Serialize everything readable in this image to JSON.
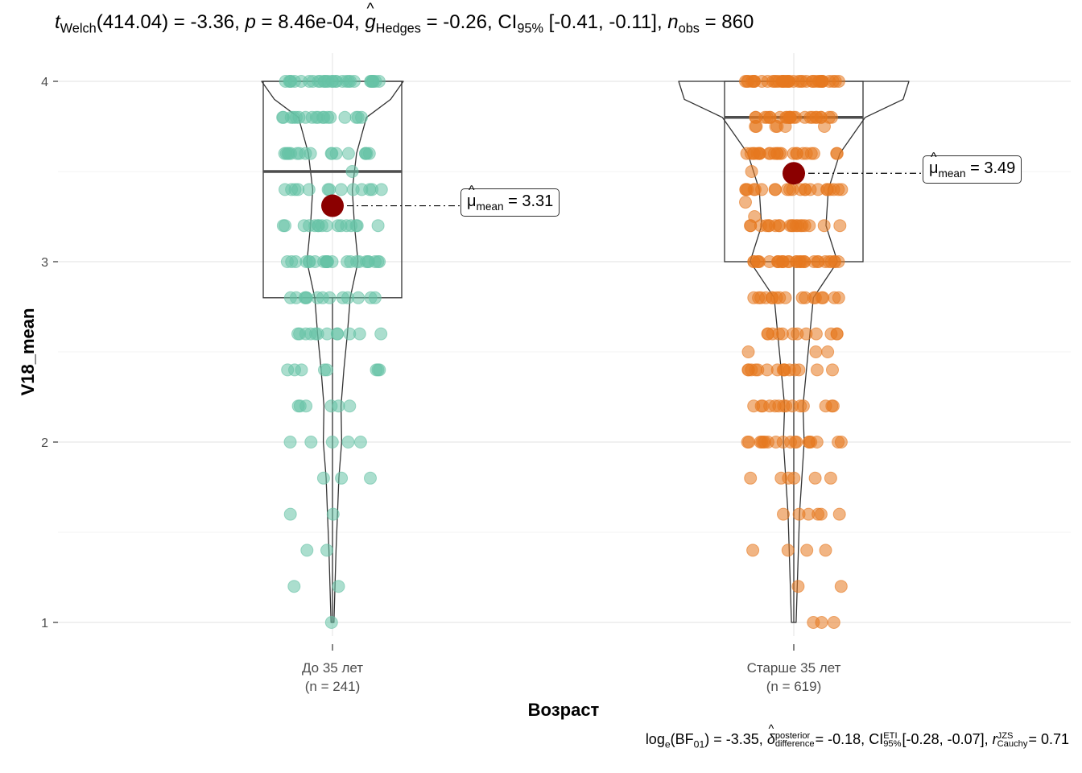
{
  "subtitle": {
    "t_sym": "t",
    "t_sub": "Welch",
    "t_df": "(414.04)",
    "t_val": "= -3.36,",
    "p_sym": "p",
    "p_val": "= 8.46e-04,",
    "g_sym": "g",
    "g_sub": "Hedges",
    "g_val": "= -0.26,",
    "ci_sym": "CI",
    "ci_sub": "95%",
    "ci_val": "[-0.41, -0.11],",
    "n_sym": "n",
    "n_sub": "obs",
    "n_val": "= 860"
  },
  "caption": {
    "log": "log",
    "log_sub": "e",
    "bf": "(BF",
    "bf_sub": "01",
    "bf_val": ") = -3.35,",
    "delta": "δ",
    "delta_sup": "posterior",
    "delta_sub": "difference",
    "delta_val": "= -0.18,",
    "ci": "CI",
    "ci_sup": "ETI",
    "ci_sub": "95%",
    "ci_val": "[-0.28, -0.07],",
    "r": "r",
    "r_sup": "JZS",
    "r_sub": "Cauchy",
    "r_val": "= 0.71"
  },
  "chart_data": {
    "type": "violin-box-scatter",
    "xlabel": "Возраст",
    "ylabel": "V18_mean",
    "ylim": [
      0.9,
      4.12
    ],
    "yticks": [
      1,
      2,
      3,
      4
    ],
    "grid": true,
    "categories": [
      "До 35 лет",
      "Старше 35 лет"
    ],
    "category_n": [
      "(n = 241)",
      "(n = 619)"
    ],
    "colors": [
      "#66c2a5",
      "#e6781f"
    ],
    "mean_color": "#8b0000",
    "box": [
      {
        "q1": 2.8,
        "median": 3.5,
        "q3": 4.0,
        "whisker_low": 1.0,
        "whisker_high": 4.0
      },
      {
        "q1": 3.0,
        "median": 3.8,
        "q3": 4.0,
        "whisker_low": 1.0,
        "whisker_high": 4.0
      }
    ],
    "means": [
      3.31,
      3.49
    ],
    "mean_label_symbol": "μ",
    "mean_label_sub": "mean",
    "mean_labels": [
      "= 3.31",
      "= 3.49"
    ],
    "violin": [
      {
        "y": [
          1.0,
          1.2,
          1.4,
          1.6,
          1.8,
          2.0,
          2.2,
          2.4,
          2.6,
          2.8,
          3.0,
          3.2,
          3.4,
          3.6,
          3.8,
          3.9,
          4.0
        ],
        "density": [
          0.02,
          0.035,
          0.05,
          0.07,
          0.09,
          0.13,
          0.12,
          0.16,
          0.21,
          0.25,
          0.36,
          0.31,
          0.28,
          0.34,
          0.48,
          0.82,
          1.0
        ]
      },
      {
        "y": [
          1.0,
          1.2,
          1.4,
          1.6,
          1.8,
          2.0,
          2.2,
          2.4,
          2.6,
          2.8,
          3.0,
          3.2,
          3.4,
          3.6,
          3.8,
          3.9,
          4.0
        ],
        "density": [
          0.02,
          0.03,
          0.04,
          0.05,
          0.07,
          0.09,
          0.08,
          0.11,
          0.14,
          0.17,
          0.38,
          0.28,
          0.3,
          0.4,
          0.62,
          0.95,
          1.0
        ]
      }
    ],
    "points": [
      {
        "values": [
          1.0,
          1.2,
          1.2,
          1.4,
          1.4,
          1.6,
          1.6,
          1.8,
          1.8,
          1.8,
          2.0,
          2.0,
          2.0,
          2.0,
          2.0,
          2.2,
          2.2,
          2.2,
          2.2,
          2.2,
          2.2,
          2.4,
          2.4,
          2.4,
          2.4,
          2.4,
          2.4,
          2.4,
          2.4,
          2.6,
          2.6,
          2.6,
          2.6,
          2.6,
          2.6,
          2.6,
          2.6,
          2.6,
          2.6,
          2.6,
          2.6,
          2.8,
          2.8,
          2.8,
          2.8,
          2.8,
          2.8,
          2.8,
          2.8,
          2.8,
          2.8,
          2.8,
          2.8,
          2.8,
          3.0,
          3.0,
          3.0,
          3.0,
          3.0,
          3.0,
          3.0,
          3.0,
          3.0,
          3.0,
          3.0,
          3.0,
          3.0,
          3.0,
          3.0,
          3.0,
          3.0,
          3.0,
          3.0,
          3.0,
          3.0,
          3.0,
          3.0,
          3.0,
          3.2,
          3.2,
          3.2,
          3.2,
          3.2,
          3.2,
          3.2,
          3.2,
          3.2,
          3.2,
          3.2,
          3.2,
          3.2,
          3.2,
          3.2,
          3.2,
          3.4,
          3.4,
          3.4,
          3.4,
          3.4,
          3.4,
          3.4,
          3.4,
          3.4,
          3.4,
          3.4,
          3.4,
          3.4,
          3.5,
          3.6,
          3.6,
          3.6,
          3.6,
          3.6,
          3.6,
          3.6,
          3.6,
          3.6,
          3.6,
          3.6,
          3.6,
          3.6,
          3.6,
          3.6,
          3.6,
          3.6,
          3.8,
          3.8,
          3.8,
          3.8,
          3.8,
          3.8,
          3.8,
          3.8,
          3.8,
          3.8,
          3.8,
          3.8,
          3.8,
          3.8,
          3.8,
          3.8,
          3.8,
          3.8,
          4.0,
          4.0,
          4.0,
          4.0,
          4.0,
          4.0,
          4.0,
          4.0,
          4.0,
          4.0,
          4.0,
          4.0,
          4.0,
          4.0,
          4.0,
          4.0,
          4.0,
          4.0,
          4.0,
          4.0,
          4.0,
          4.0,
          4.0,
          4.0,
          4.0,
          4.0,
          4.0,
          4.0,
          4.0,
          4.0
        ]
      },
      {
        "values": [
          1.0,
          1.0,
          1.0,
          1.2,
          1.2,
          1.4,
          1.4,
          1.4,
          1.4,
          1.6,
          1.6,
          1.6,
          1.6,
          1.6,
          1.6,
          1.8,
          1.8,
          1.8,
          1.8,
          1.8,
          1.8,
          2.0,
          2.0,
          2.0,
          2.0,
          2.0,
          2.0,
          2.0,
          2.0,
          2.0,
          2.0,
          2.0,
          2.0,
          2.0,
          2.0,
          2.0,
          2.0,
          2.0,
          2.0,
          2.2,
          2.2,
          2.2,
          2.2,
          2.2,
          2.2,
          2.2,
          2.2,
          2.2,
          2.2,
          2.2,
          2.2,
          2.2,
          2.2,
          2.4,
          2.4,
          2.4,
          2.4,
          2.4,
          2.4,
          2.4,
          2.4,
          2.4,
          2.4,
          2.4,
          2.4,
          2.4,
          2.4,
          2.4,
          2.5,
          2.5,
          2.5,
          2.6,
          2.6,
          2.6,
          2.6,
          2.6,
          2.6,
          2.6,
          2.6,
          2.6,
          2.6,
          2.6,
          2.6,
          2.8,
          2.8,
          2.8,
          2.8,
          2.8,
          2.8,
          2.8,
          2.8,
          2.8,
          2.8,
          2.8,
          2.8,
          2.8,
          2.8,
          2.8,
          2.8,
          2.8,
          3.0,
          3.0,
          3.0,
          3.0,
          3.0,
          3.0,
          3.0,
          3.0,
          3.0,
          3.0,
          3.0,
          3.0,
          3.0,
          3.0,
          3.0,
          3.0,
          3.0,
          3.0,
          3.0,
          3.0,
          3.0,
          3.0,
          3.0,
          3.0,
          3.0,
          3.0,
          3.0,
          3.0,
          3.0,
          3.0,
          3.2,
          3.2,
          3.2,
          3.2,
          3.2,
          3.2,
          3.2,
          3.2,
          3.2,
          3.2,
          3.2,
          3.2,
          3.2,
          3.2,
          3.2,
          3.2,
          3.2,
          3.2,
          3.2,
          3.2,
          3.25,
          3.33,
          3.4,
          3.4,
          3.4,
          3.4,
          3.4,
          3.4,
          3.4,
          3.4,
          3.4,
          3.4,
          3.4,
          3.4,
          3.4,
          3.4,
          3.4,
          3.4,
          3.4,
          3.4,
          3.4,
          3.4,
          3.4,
          3.4,
          3.5,
          3.6,
          3.6,
          3.6,
          3.6,
          3.6,
          3.6,
          3.6,
          3.6,
          3.6,
          3.6,
          3.6,
          3.6,
          3.6,
          3.6,
          3.6,
          3.6,
          3.6,
          3.6,
          3.6,
          3.6,
          3.6,
          3.6,
          3.6,
          3.6,
          3.75,
          3.75,
          3.75,
          3.75,
          3.75,
          3.75,
          3.8,
          3.8,
          3.8,
          3.8,
          3.8,
          3.8,
          3.8,
          3.8,
          3.8,
          3.8,
          3.8,
          3.8,
          3.8,
          3.8,
          3.8,
          3.8,
          3.8,
          3.8,
          3.8,
          3.8,
          3.8,
          3.8,
          3.8,
          3.8,
          4.0,
          4.0,
          4.0,
          4.0,
          4.0,
          4.0,
          4.0,
          4.0,
          4.0,
          4.0,
          4.0,
          4.0,
          4.0,
          4.0,
          4.0,
          4.0,
          4.0,
          4.0,
          4.0,
          4.0,
          4.0,
          4.0,
          4.0,
          4.0,
          4.0,
          4.0,
          4.0,
          4.0,
          4.0,
          4.0,
          4.0,
          4.0,
          4.0,
          4.0,
          4.0,
          4.0,
          4.0,
          4.0,
          4.0,
          4.0
        ]
      }
    ]
  }
}
